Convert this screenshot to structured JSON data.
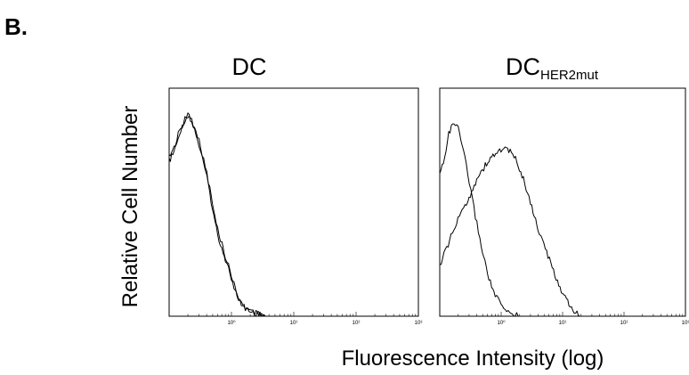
{
  "figure": {
    "panel_letter": "B.",
    "xlabel": "Fluorescence Intensity (log)",
    "ylabel": "Relative Cell Number"
  },
  "chart_data": [
    {
      "type": "line",
      "title": "DC",
      "title_subscript": "",
      "x_scale": "log",
      "xlim": [
        0.1,
        1000
      ],
      "ylim": [
        0,
        1
      ],
      "x_tick_labels": [
        "10⁰",
        "10¹",
        "10²",
        "10³"
      ],
      "x_tick_values": [
        1,
        10,
        100,
        1000
      ],
      "grid": false,
      "legend": false,
      "series": [
        {
          "x": [
            0.1,
            0.12,
            0.14,
            0.17,
            0.2,
            0.23,
            0.27,
            0.32,
            0.38,
            0.45,
            0.52,
            0.6,
            0.7,
            0.8,
            0.95,
            1.1,
            1.3,
            1.6,
            2.0,
            2.6,
            3.5
          ],
          "y": [
            0.68,
            0.72,
            0.8,
            0.85,
            0.9,
            0.85,
            0.8,
            0.72,
            0.64,
            0.54,
            0.44,
            0.36,
            0.3,
            0.25,
            0.19,
            0.12,
            0.07,
            0.04,
            0.02,
            0.01,
            0.0
          ]
        },
        {
          "x": [
            0.1,
            0.12,
            0.14,
            0.17,
            0.2,
            0.23,
            0.27,
            0.32,
            0.38,
            0.45,
            0.52,
            0.6,
            0.7,
            0.8,
            0.95,
            1.1,
            1.3,
            1.6,
            2.0,
            2.6,
            3.5
          ],
          "y": [
            0.7,
            0.74,
            0.78,
            0.84,
            0.88,
            0.86,
            0.82,
            0.74,
            0.66,
            0.56,
            0.46,
            0.38,
            0.32,
            0.26,
            0.2,
            0.14,
            0.08,
            0.04,
            0.02,
            0.01,
            0.0
          ]
        }
      ]
    },
    {
      "type": "line",
      "title": "DC",
      "title_subscript": "HER2mut",
      "x_scale": "log",
      "xlim": [
        0.1,
        1000
      ],
      "ylim": [
        0,
        1
      ],
      "x_tick_labels": [
        "10⁰",
        "10¹",
        "10²",
        "10³"
      ],
      "x_tick_values": [
        1,
        10,
        100,
        1000
      ],
      "grid": false,
      "legend": false,
      "series": [
        {
          "x": [
            0.1,
            0.12,
            0.14,
            0.17,
            0.2,
            0.23,
            0.27,
            0.32,
            0.38,
            0.45,
            0.52,
            0.6,
            0.7,
            0.8,
            0.95,
            1.1,
            1.3,
            1.6,
            2.0
          ],
          "y": [
            0.62,
            0.7,
            0.8,
            0.85,
            0.82,
            0.75,
            0.66,
            0.55,
            0.44,
            0.34,
            0.26,
            0.19,
            0.13,
            0.09,
            0.06,
            0.03,
            0.02,
            0.01,
            0.0
          ]
        },
        {
          "x": [
            0.1,
            0.13,
            0.17,
            0.22,
            0.3,
            0.4,
            0.55,
            0.7,
            0.9,
            1.1,
            1.4,
            1.8,
            2.3,
            3.0,
            4.0,
            5.5,
            7.5,
            10,
            14,
            20
          ],
          "y": [
            0.22,
            0.3,
            0.38,
            0.45,
            0.52,
            0.6,
            0.66,
            0.7,
            0.72,
            0.74,
            0.72,
            0.68,
            0.6,
            0.5,
            0.38,
            0.28,
            0.18,
            0.1,
            0.03,
            0.0
          ]
        }
      ]
    }
  ]
}
